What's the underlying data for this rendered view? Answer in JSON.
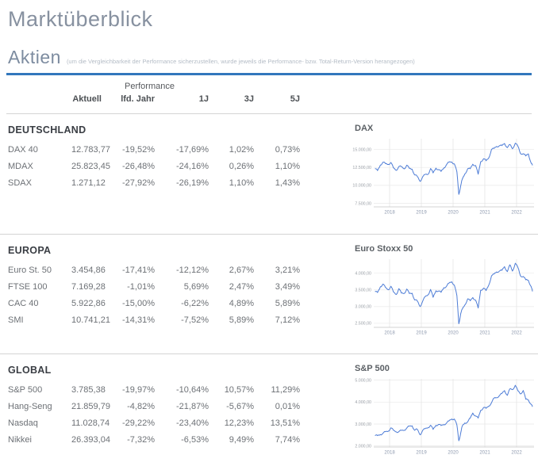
{
  "page": {
    "title": "Marktüberblick"
  },
  "section": {
    "title": "Aktien",
    "note": "(um die Vergleichbarkeit der Performance sicherzustellen, wurde jeweils die Performance- bzw. Total-Return-Version herangezogen)"
  },
  "colors": {
    "accent_rule": "#3277bc",
    "chart_line": "#4d7cd6",
    "gridline": "#e9e9e9",
    "axis_line": "#c4c4c4",
    "heading_gray_blue": "#7d8ca0"
  },
  "table": {
    "group_header": "Performance",
    "columns": [
      "Aktuell",
      "lfd. Jahr",
      "1J",
      "3J",
      "5J"
    ],
    "regions": [
      {
        "name": "DEUTSCHLAND",
        "rows": [
          {
            "label": "DAX 40",
            "values": [
              "12.783,77",
              "-19,52%",
              "-17,69%",
              "1,02%",
              "0,73%"
            ]
          },
          {
            "label": "MDAX",
            "values": [
              "25.823,45",
              "-26,48%",
              "-24,16%",
              "0,26%",
              "1,10%"
            ]
          },
          {
            "label": "SDAX",
            "values": [
              "1.271,12",
              "-27,92%",
              "-26,19%",
              "1,10%",
              "1,43%"
            ]
          }
        ]
      },
      {
        "name": "EUROPA",
        "rows": [
          {
            "label": "Euro St. 50",
            "values": [
              "3.454,86",
              "-17,41%",
              "-12,12%",
              "2,67%",
              "3,21%"
            ]
          },
          {
            "label": "FTSE 100",
            "values": [
              "7.169,28",
              "-1,01%",
              "5,69%",
              "2,47%",
              "3,49%"
            ]
          },
          {
            "label": "CAC 40",
            "values": [
              "5.922,86",
              "-15,00%",
              "-6,22%",
              "4,89%",
              "5,89%"
            ]
          },
          {
            "label": "SMI",
            "values": [
              "10.741,21",
              "-14,31%",
              "-7,52%",
              "5,89%",
              "7,12%"
            ]
          }
        ]
      },
      {
        "name": "GLOBAL",
        "rows": [
          {
            "label": "S&P 500",
            "values": [
              "3.785,38",
              "-19,97%",
              "-10,64%",
              "10,57%",
              "11,29%"
            ]
          },
          {
            "label": "Hang-Seng",
            "values": [
              "21.859,79",
              "-4,82%",
              "-21,87%",
              "-5,67%",
              "0,01%"
            ]
          },
          {
            "label": "Nasdaq",
            "values": [
              "11.028,74",
              "-29,22%",
              "-23,40%",
              "12,23%",
              "13,51%"
            ]
          },
          {
            "label": "Nikkei",
            "values": [
              "26.393,04",
              "-7,32%",
              "-6,53%",
              "9,49%",
              "7,74%"
            ]
          }
        ]
      }
    ]
  },
  "chart_data": [
    {
      "type": "line",
      "title": "DAX",
      "xlabel": "",
      "ylabel": "",
      "legend": false,
      "grid": true,
      "xlim": [
        2017.5,
        2022.55
      ],
      "ylim": [
        7000,
        16500
      ],
      "xticks": [
        [
          2018,
          "2018"
        ],
        [
          2019,
          "2019"
        ],
        [
          2020,
          "2020"
        ],
        [
          2021,
          "2021"
        ],
        [
          2022,
          "2022"
        ]
      ],
      "yticks": [
        [
          7500,
          "7.500,00"
        ],
        [
          10000,
          "10.000,00"
        ],
        [
          12500,
          "12.500,00"
        ],
        [
          15000,
          "15.000,00"
        ]
      ],
      "points": [
        [
          2017.54,
          12325
        ],
        [
          2017.62,
          12055
        ],
        [
          2017.71,
          12829
        ],
        [
          2017.79,
          13229
        ],
        [
          2017.87,
          13024
        ],
        [
          2017.96,
          12918
        ],
        [
          2018.04,
          13189
        ],
        [
          2018.12,
          12436
        ],
        [
          2018.21,
          12097
        ],
        [
          2018.29,
          12612
        ],
        [
          2018.37,
          12604
        ],
        [
          2018.46,
          12306
        ],
        [
          2018.54,
          12806
        ],
        [
          2018.62,
          12364
        ],
        [
          2018.71,
          12247
        ],
        [
          2018.79,
          11447
        ],
        [
          2018.87,
          11257
        ],
        [
          2018.96,
          10559
        ],
        [
          2019.04,
          11173
        ],
        [
          2019.12,
          11516
        ],
        [
          2019.21,
          11526
        ],
        [
          2019.29,
          12344
        ],
        [
          2019.37,
          11727
        ],
        [
          2019.46,
          12399
        ],
        [
          2019.54,
          12189
        ],
        [
          2019.62,
          11939
        ],
        [
          2019.71,
          12428
        ],
        [
          2019.79,
          12867
        ],
        [
          2019.87,
          13236
        ],
        [
          2019.96,
          13249
        ],
        [
          2020.04,
          12982
        ],
        [
          2020.12,
          11890
        ],
        [
          2020.18,
          8742
        ],
        [
          2020.24,
          9936
        ],
        [
          2020.29,
          10862
        ],
        [
          2020.37,
          11587
        ],
        [
          2020.46,
          12311
        ],
        [
          2020.54,
          12313
        ],
        [
          2020.62,
          12945
        ],
        [
          2020.71,
          12761
        ],
        [
          2020.79,
          11556
        ],
        [
          2020.87,
          13291
        ],
        [
          2020.96,
          13719
        ],
        [
          2021.04,
          13433
        ],
        [
          2021.12,
          13786
        ],
        [
          2021.21,
          15008
        ],
        [
          2021.29,
          15136
        ],
        [
          2021.37,
          15421
        ],
        [
          2021.46,
          15531
        ],
        [
          2021.54,
          15544
        ],
        [
          2021.62,
          15835
        ],
        [
          2021.71,
          15261
        ],
        [
          2021.79,
          15689
        ],
        [
          2021.87,
          15100
        ],
        [
          2021.96,
          15885
        ],
        [
          2022.04,
          15471
        ],
        [
          2022.12,
          14461
        ],
        [
          2022.21,
          14415
        ],
        [
          2022.29,
          14098
        ],
        [
          2022.37,
          14388
        ],
        [
          2022.46,
          13100
        ],
        [
          2022.5,
          12784
        ]
      ]
    },
    {
      "type": "line",
      "title": "Euro Stoxx 50",
      "xlabel": "",
      "ylabel": "",
      "legend": false,
      "grid": true,
      "xlim": [
        2017.5,
        2022.55
      ],
      "ylim": [
        2380,
        4420
      ],
      "xticks": [
        [
          2018,
          "2018"
        ],
        [
          2019,
          "2019"
        ],
        [
          2020,
          "2020"
        ],
        [
          2021,
          "2021"
        ],
        [
          2022,
          "2022"
        ]
      ],
      "yticks": [
        [
          2500,
          "2.500,00"
        ],
        [
          3000,
          "3.000,00"
        ],
        [
          3500,
          "3.500,00"
        ],
        [
          4000,
          "4.000,00"
        ]
      ],
      "points": [
        [
          2017.54,
          3450
        ],
        [
          2017.62,
          3421
        ],
        [
          2017.71,
          3595
        ],
        [
          2017.79,
          3674
        ],
        [
          2017.87,
          3570
        ],
        [
          2017.96,
          3504
        ],
        [
          2018.04,
          3609
        ],
        [
          2018.12,
          3439
        ],
        [
          2018.21,
          3362
        ],
        [
          2018.29,
          3537
        ],
        [
          2018.37,
          3407
        ],
        [
          2018.46,
          3396
        ],
        [
          2018.54,
          3525
        ],
        [
          2018.62,
          3393
        ],
        [
          2018.71,
          3399
        ],
        [
          2018.79,
          3198
        ],
        [
          2018.87,
          3173
        ],
        [
          2018.96,
          3001
        ],
        [
          2019.04,
          3159
        ],
        [
          2019.12,
          3298
        ],
        [
          2019.21,
          3352
        ],
        [
          2019.29,
          3515
        ],
        [
          2019.37,
          3280
        ],
        [
          2019.46,
          3474
        ],
        [
          2019.54,
          3467
        ],
        [
          2019.62,
          3427
        ],
        [
          2019.71,
          3569
        ],
        [
          2019.79,
          3604
        ],
        [
          2019.87,
          3704
        ],
        [
          2019.96,
          3745
        ],
        [
          2020.04,
          3641
        ],
        [
          2020.12,
          3329
        ],
        [
          2020.18,
          2486
        ],
        [
          2020.24,
          2787
        ],
        [
          2020.29,
          2928
        ],
        [
          2020.37,
          3050
        ],
        [
          2020.46,
          3234
        ],
        [
          2020.54,
          3174
        ],
        [
          2020.62,
          3273
        ],
        [
          2020.71,
          3193
        ],
        [
          2020.79,
          2958
        ],
        [
          2020.87,
          3493
        ],
        [
          2020.96,
          3553
        ],
        [
          2021.04,
          3481
        ],
        [
          2021.12,
          3636
        ],
        [
          2021.21,
          3919
        ],
        [
          2021.29,
          3974
        ],
        [
          2021.37,
          4039
        ],
        [
          2021.46,
          4064
        ],
        [
          2021.54,
          4089
        ],
        [
          2021.62,
          4196
        ],
        [
          2021.71,
          4048
        ],
        [
          2021.79,
          4251
        ],
        [
          2021.87,
          4063
        ],
        [
          2021.96,
          4298
        ],
        [
          2022.04,
          4175
        ],
        [
          2022.12,
          3924
        ],
        [
          2022.21,
          3903
        ],
        [
          2022.29,
          3803
        ],
        [
          2022.37,
          3789
        ],
        [
          2022.46,
          3600
        ],
        [
          2022.5,
          3455
        ]
      ]
    },
    {
      "type": "line",
      "title": "S&P 500",
      "xlabel": "",
      "ylabel": "",
      "legend": false,
      "grid": true,
      "xlim": [
        2017.5,
        2022.55
      ],
      "ylim": [
        1950,
        5060
      ],
      "xticks": [
        [
          2018,
          "2018"
        ],
        [
          2019,
          "2019"
        ],
        [
          2020,
          "2020"
        ],
        [
          2021,
          "2021"
        ],
        [
          2022,
          "2022"
        ]
      ],
      "yticks": [
        [
          2000,
          "2.000,00"
        ],
        [
          3000,
          "3.000,00"
        ],
        [
          4000,
          "4.000,00"
        ],
        [
          5000,
          "5.000,00"
        ]
      ],
      "points": [
        [
          2017.54,
          2470
        ],
        [
          2017.62,
          2472
        ],
        [
          2017.71,
          2519
        ],
        [
          2017.79,
          2575
        ],
        [
          2017.87,
          2648
        ],
        [
          2017.96,
          2674
        ],
        [
          2018.04,
          2824
        ],
        [
          2018.12,
          2714
        ],
        [
          2018.21,
          2641
        ],
        [
          2018.29,
          2648
        ],
        [
          2018.37,
          2705
        ],
        [
          2018.46,
          2718
        ],
        [
          2018.54,
          2816
        ],
        [
          2018.62,
          2902
        ],
        [
          2018.71,
          2914
        ],
        [
          2018.79,
          2712
        ],
        [
          2018.87,
          2760
        ],
        [
          2018.96,
          2507
        ],
        [
          2019.04,
          2704
        ],
        [
          2019.12,
          2784
        ],
        [
          2019.21,
          2834
        ],
        [
          2019.29,
          2946
        ],
        [
          2019.37,
          2752
        ],
        [
          2019.46,
          2942
        ],
        [
          2019.54,
          2980
        ],
        [
          2019.62,
          2926
        ],
        [
          2019.71,
          2977
        ],
        [
          2019.79,
          3038
        ],
        [
          2019.87,
          3141
        ],
        [
          2019.96,
          3231
        ],
        [
          2020.04,
          3226
        ],
        [
          2020.12,
          2954
        ],
        [
          2020.18,
          2237
        ],
        [
          2020.24,
          2585
        ],
        [
          2020.29,
          2912
        ],
        [
          2020.37,
          3044
        ],
        [
          2020.46,
          3100
        ],
        [
          2020.54,
          3271
        ],
        [
          2020.62,
          3500
        ],
        [
          2020.71,
          3363
        ],
        [
          2020.79,
          3270
        ],
        [
          2020.87,
          3622
        ],
        [
          2020.96,
          3756
        ],
        [
          2021.04,
          3714
        ],
        [
          2021.12,
          3811
        ],
        [
          2021.21,
          3973
        ],
        [
          2021.29,
          4181
        ],
        [
          2021.37,
          4204
        ],
        [
          2021.46,
          4298
        ],
        [
          2021.54,
          4395
        ],
        [
          2021.62,
          4523
        ],
        [
          2021.71,
          4308
        ],
        [
          2021.79,
          4605
        ],
        [
          2021.87,
          4567
        ],
        [
          2021.96,
          4766
        ],
        [
          2022.04,
          4516
        ],
        [
          2022.12,
          4374
        ],
        [
          2022.21,
          4530
        ],
        [
          2022.29,
          4132
        ],
        [
          2022.37,
          4100
        ],
        [
          2022.46,
          3900
        ],
        [
          2022.5,
          3785
        ]
      ]
    }
  ]
}
